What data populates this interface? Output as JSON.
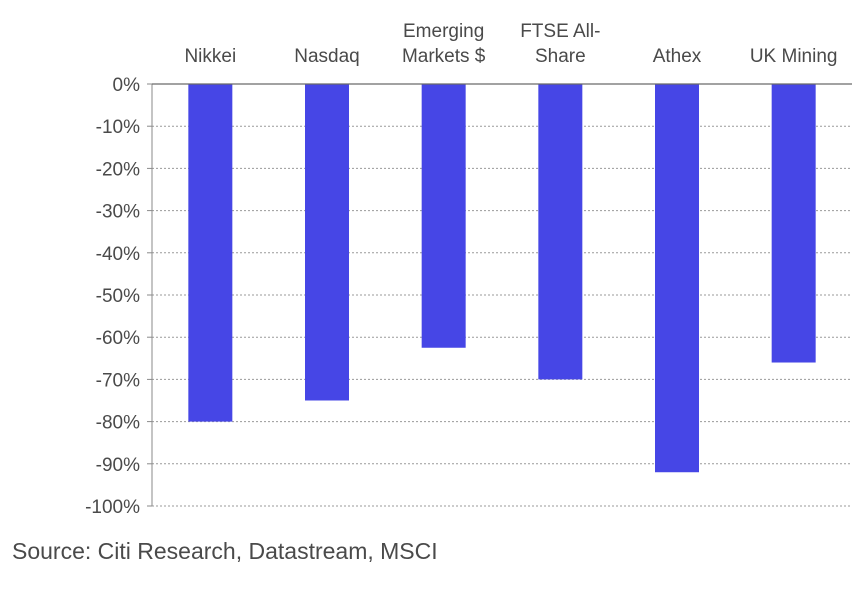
{
  "chart_data": {
    "type": "bar",
    "title": "",
    "xlabel": "",
    "ylabel": "",
    "categories": [
      [
        "Nikkei"
      ],
      [
        "Nasdaq"
      ],
      [
        "Emerging",
        "Markets $"
      ],
      [
        "FTSE All-",
        "Share"
      ],
      [
        "Athex"
      ],
      [
        "UK Mining"
      ]
    ],
    "values": [
      -80,
      -75,
      -62.5,
      -70,
      -92,
      -66
    ],
    "ylim": [
      -100,
      0
    ],
    "yticks": [
      0,
      -10,
      -20,
      -30,
      -40,
      -50,
      -60,
      -70,
      -80,
      -90,
      -100
    ],
    "ytick_labels": [
      "0%",
      "-10%",
      "-20%",
      "-30%",
      "-40%",
      "-50%",
      "-60%",
      "-70%",
      "-80%",
      "-90%",
      "-100%"
    ],
    "category_axis_position": "top",
    "grid": true,
    "legend": "none",
    "bar_color": "#4646e6"
  },
  "source_note": "Source: Citi Research, Datastream, MSCI"
}
